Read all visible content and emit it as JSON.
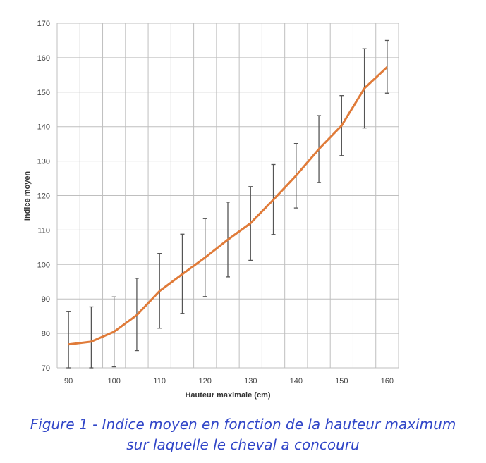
{
  "chart_data": {
    "type": "line",
    "title": "",
    "xlabel": "Hauteur maximale (cm)",
    "ylabel": "Indice moyen",
    "xlim": [
      87.5,
      162.5
    ],
    "ylim": [
      70,
      170
    ],
    "x_ticks": [
      90,
      100,
      110,
      120,
      130,
      140,
      150,
      160
    ],
    "y_ticks": [
      70,
      80,
      90,
      100,
      110,
      120,
      130,
      140,
      150,
      160,
      170
    ],
    "grid": true,
    "legend": "none",
    "series": [
      {
        "color": "#E07B39",
        "x": [
          90,
          95,
          100,
          105,
          110,
          115,
          120,
          125,
          130,
          135,
          140,
          145,
          150,
          155,
          160
        ],
        "y": [
          76.8,
          77.6,
          80.5,
          85.3,
          92.3,
          97.2,
          102,
          107.2,
          112,
          118.8,
          125.8,
          133.5,
          140.3,
          151.1,
          157.3
        ],
        "error_low": [
          70,
          70,
          70.3,
          75,
          81.5,
          85.8,
          90.7,
          96.4,
          101.2,
          108.7,
          116.4,
          123.8,
          131.6,
          139.6,
          149.7
        ],
        "error_high": [
          86.3,
          87.7,
          90.6,
          96,
          103.2,
          108.8,
          113.3,
          118.1,
          122.6,
          129,
          135.1,
          143.2,
          149,
          162.6,
          165
        ]
      }
    ]
  },
  "caption": {
    "line1": "Figure 1 - Indice moyen en fonction de la hauteur maximum",
    "line2": "sur laquelle le cheval a concouru",
    "color": "#3146C8"
  },
  "colors": {
    "grid": "#BFBFBF",
    "error_bar": "#555555",
    "axis": "#444444"
  }
}
